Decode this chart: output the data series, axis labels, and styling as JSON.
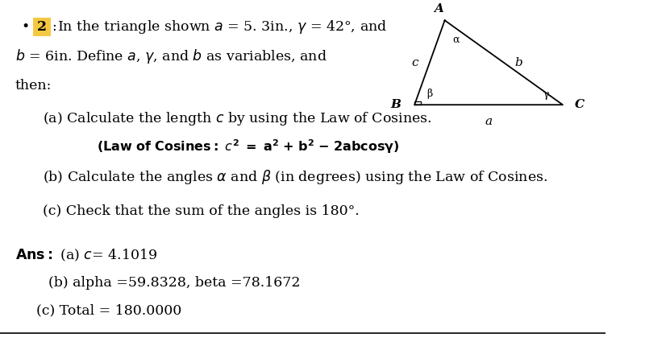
{
  "background_color": "#ffffff",
  "bullet_color": "#f5c842",
  "triangle": {
    "A": [
      0.735,
      0.945
    ],
    "B": [
      0.685,
      0.7
    ],
    "C": [
      0.93,
      0.7
    ]
  },
  "font_size_main": 12.5,
  "font_size_law": 11.5,
  "font_size_ans": 12.5,
  "font_size_triangle": 11
}
